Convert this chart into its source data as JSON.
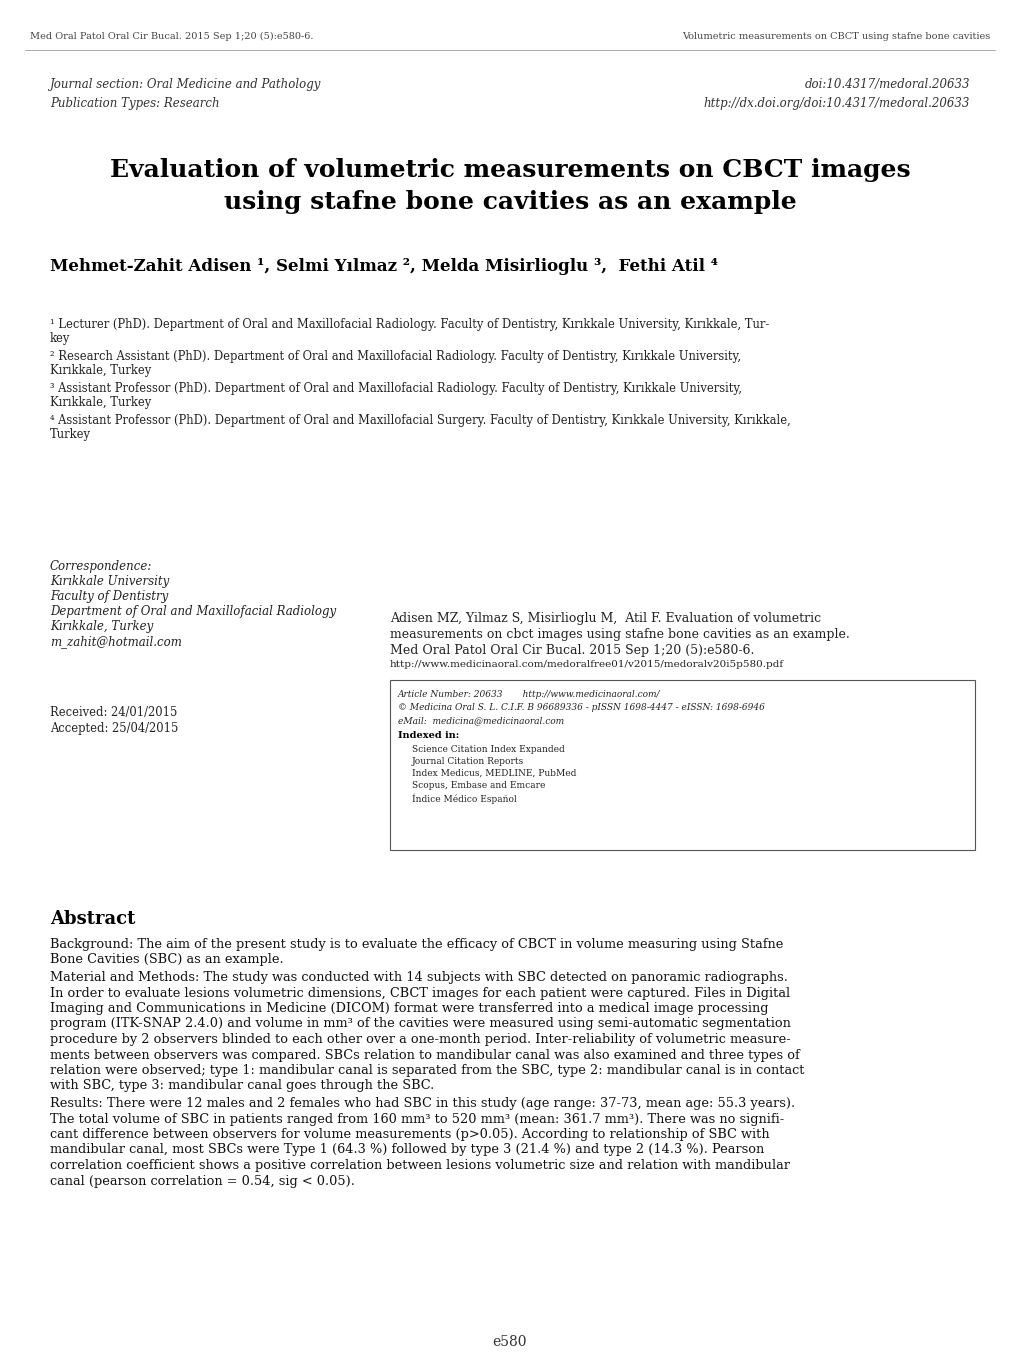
{
  "header_left": "Med Oral Patol Oral Cir Bucal. 2015 Sep 1;20 (5):e580-6.",
  "header_right": "Volumetric measurements on CBCT using stafne bone cavities",
  "journal_section": "Journal section: Oral Medicine and Pathology",
  "pub_type": "Publication Types: Research",
  "doi_right": "doi:10.4317/medoral.20633",
  "url_right": "http://dx.doi.org/doi:10.4317/medoral.20633",
  "main_title_line1": "Evaluation of volumetric measurements on CBCT images",
  "main_title_line2": "using stafne bone cavities as an example",
  "authors": "Mehmet-Zahit Adisen ¹, Selmi Yılmaz ², Melda Misirlioglu ³,  Fethi Atil ⁴",
  "affil1_line1": "¹ Lecturer (PhD). Department of Oral and Maxillofacial Radiology. Faculty of Dentistry, Kırıkkale University, Kırıkkale, Tur-",
  "affil1_line2": "key",
  "affil2_line1": "² Research Assistant (PhD). Department of Oral and Maxillofacial Radiology. Faculty of Dentistry, Kırıkkale University,",
  "affil2_line2": "Kırıkkale, Turkey",
  "affil3_line1": "³ Assistant Professor (PhD). Department of Oral and Maxillofacial Radiology. Faculty of Dentistry, Kırıkkale University,",
  "affil3_line2": "Kırıkkale, Turkey",
  "affil4_line1": "⁴ Assistant Professor (PhD). Department of Oral and Maxillofacial Surgery. Faculty of Dentistry, Kırıkkale University, Kırıkkale,",
  "affil4_line2": "Turkey",
  "corr_label": "Correspondence:",
  "corr_lines": [
    "Kırıkkale University",
    "Faculty of Dentistry",
    "Department of Oral and Maxillofacial Radiology",
    "Kırıkkale, Turkey",
    "m_zahit@hotmail.com"
  ],
  "received": "Received: 24/01/2015",
  "accepted": "Accepted: 25/04/2015",
  "citation_line1": "Adisen MZ, Yilmaz S, Misirlioglu M,  Atil F. Evaluation of volumetric",
  "citation_line2": "measurements on cbct images using stafne bone cavities as an example.",
  "citation_line3": "Med Oral Patol Oral Cir Bucal. 2015 Sep 1;20 (5):e580-6.",
  "citation_line4": "http://www.medicinaoral.com/medoralfree01/v2015/medoralv20i5p580.pdf",
  "box_article_num": "Article Number: 20633       http://www.medicinaoral.com/",
  "box_copyright": "© Medicina Oral S. L. C.I.F. B 96689336 - pISSN 1698-4447 - eISSN: 1698-6946",
  "box_email": "eMail:  medicina@medicinaoral.com",
  "box_indexed": "Indexed in:",
  "box_index_items": [
    "Science Citation Index Expanded",
    "Journal Citation Reports",
    "Index Medicus, MEDLINE, PubMed",
    "Scopus, Embase and Emcare",
    "Índice Médico Español"
  ],
  "abstract_title": "Abstract",
  "abstract_para1_line1": "Background: The aim of the present study is to evaluate the efficacy of CBCT in volume measuring using Stafne",
  "abstract_para1_line2": "Bone Cavities (SBC) as an example.",
  "abstract_para2_line1": "Material and Methods: The study was conducted with 14 subjects with SBC detected on panoramic radiographs.",
  "abstract_para2_line2": "In order to evaluate lesions volumetric dimensions, CBCT images for each patient were captured. Files in Digital",
  "abstract_para2_line3": "Imaging and Communications in Medicine (DICOM) format were transferred into a medical image processing",
  "abstract_para2_line4": "program (ITK-SNAP 2.4.0) and volume in mm³ of the cavities were measured using semi-automatic segmentation",
  "abstract_para2_line5": "procedure by 2 observers blinded to each other over a one-month period. Inter-reliability of volumetric measure-",
  "abstract_para2_line6": "ments between observers was compared. SBCs relation to mandibular canal was also examined and three types of",
  "abstract_para2_line7": "relation were observed; type 1: mandibular canal is separated from the SBC, type 2: mandibular canal is in contact",
  "abstract_para2_line8": "with SBC, type 3: mandibular canal goes through the SBC.",
  "abstract_para3_line1": "Results: There were 12 males and 2 females who had SBC in this study (age range: 37-73, mean age: 55.3 years).",
  "abstract_para3_line2": "The total volume of SBC in patients ranged from 160 mm³ to 520 mm³ (mean: 361.7 mm³). There was no signifi-",
  "abstract_para3_line3": "cant difference between observers for volume measurements (p>0.05). According to relationship of SBC with",
  "abstract_para3_line4": "mandibular canal, most SBCs were Type 1 (64.3 %) followed by type 3 (21.4 %) and type 2 (14.3 %). Pearson",
  "abstract_para3_line5": "correlation coefficient shows a positive correlation between lesions volumetric size and relation with mandibular",
  "abstract_para3_line6": "canal (pearson correlation = 0.54, sig < 0.05).",
  "page_number": "e580",
  "bg_color": "#ffffff"
}
